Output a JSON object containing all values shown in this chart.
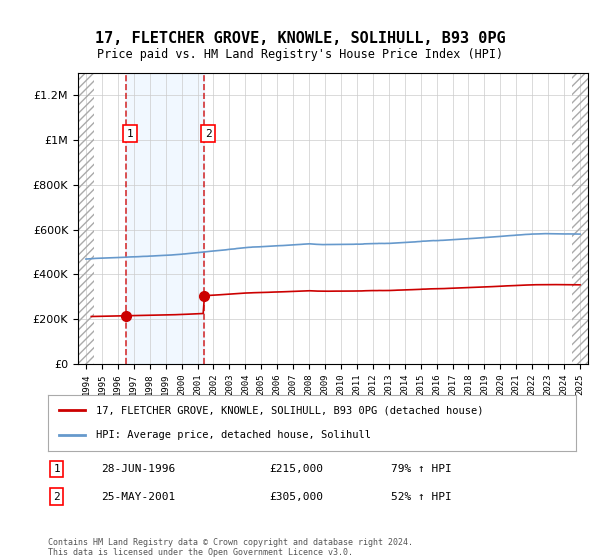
{
  "title": "17, FLETCHER GROVE, KNOWLE, SOLIHULL, B93 0PG",
  "subtitle": "Price paid vs. HM Land Registry's House Price Index (HPI)",
  "legend_line1": "17, FLETCHER GROVE, KNOWLE, SOLIHULL, B93 0PG (detached house)",
  "legend_line2": "HPI: Average price, detached house, Solihull",
  "transaction1_label": "1",
  "transaction1_date": "28-JUN-1996",
  "transaction1_price": 215000,
  "transaction1_hpi": "79% ↑ HPI",
  "transaction2_label": "2",
  "transaction2_date": "25-MAY-2001",
  "transaction2_price": 305000,
  "transaction2_hpi": "52% ↑ HPI",
  "footer": "Contains HM Land Registry data © Crown copyright and database right 2024.\nThis data is licensed under the Open Government Licence v3.0.",
  "hatch_color": "#cccccc",
  "grid_color": "#cccccc",
  "bg_color": "#ddeeff",
  "plot_bg": "#ffffff",
  "red_line_color": "#cc0000",
  "blue_line_color": "#6699cc",
  "ylim": [
    0,
    1300000
  ],
  "xlabel_start_year": 1994,
  "xlabel_end_year": 2025
}
